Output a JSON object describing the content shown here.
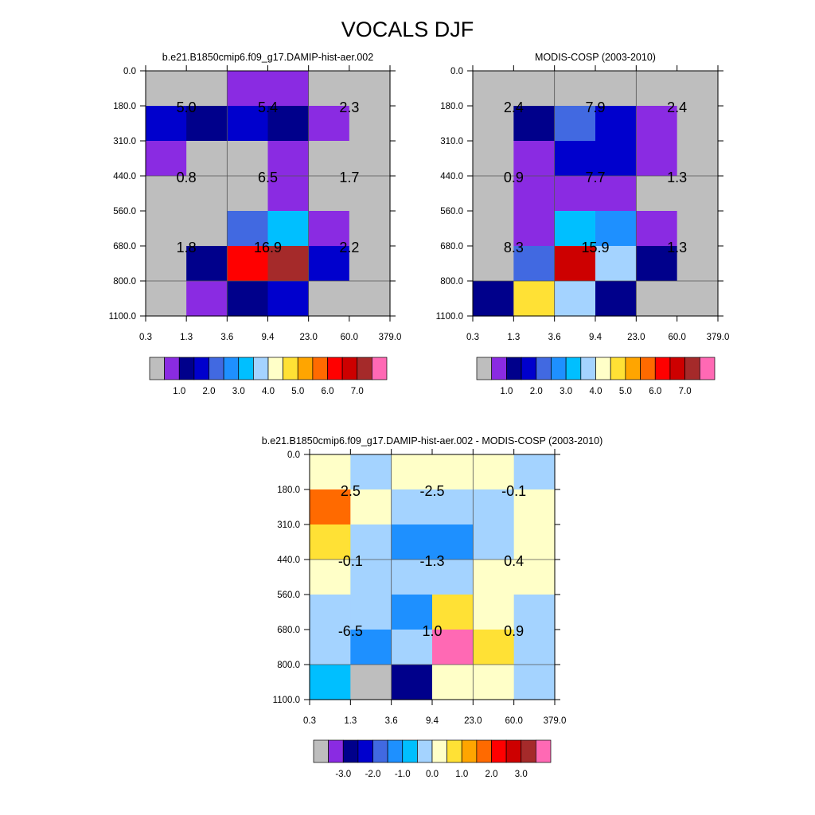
{
  "title": "VOCALS DJF",
  "palettes": {
    "main": [
      "#bebebe",
      "#8a2be2",
      "#00008b",
      "#0000cd",
      "#4169e1",
      "#1e90ff",
      "#00bfff",
      "#a4d3ff",
      "#ffffc8",
      "#ffe135",
      "#ffa500",
      "#ff6a00",
      "#ff0000",
      "#cd0000",
      "#a52a2a",
      "#ff69b4"
    ],
    "main_ticks": [
      "1.0",
      "2.0",
      "3.0",
      "4.0",
      "5.0",
      "6.0",
      "7.0"
    ],
    "diff_ticks": [
      "-3.0",
      "-2.0",
      "-1.0",
      "0.0",
      "1.0",
      "2.0",
      "3.0"
    ]
  },
  "chart_data": [
    {
      "type": "heatmap",
      "title": "b.e21.B1850cmip6.f09_g17.DAMIP-hist-aer.002",
      "x_ticks": [
        "0.3",
        "1.3",
        "3.6",
        "9.4",
        "23.0",
        "60.0",
        "379.0"
      ],
      "y_ticks": [
        "0.0",
        "180.0",
        "310.0",
        "440.0",
        "560.0",
        "680.0",
        "800.0",
        "1100.0"
      ],
      "colorbar_ticks": [
        "1.0",
        "2.0",
        "3.0",
        "4.0",
        "5.0",
        "6.0",
        "7.0"
      ],
      "cells": [
        [
          0,
          0,
          1,
          1,
          0,
          0
        ],
        [
          3,
          2,
          3,
          2,
          1,
          0
        ],
        [
          1,
          0,
          0,
          1,
          0,
          0
        ],
        [
          0,
          0,
          0,
          1,
          0,
          0
        ],
        [
          0,
          0,
          4,
          6,
          1,
          0
        ],
        [
          0,
          2,
          12,
          14,
          3,
          0
        ],
        [
          0,
          1,
          2,
          3,
          0,
          0
        ]
      ],
      "labels": [
        {
          "text": "5.0",
          "col": 1,
          "row": 1
        },
        {
          "text": "5.4",
          "col": 3,
          "row": 1
        },
        {
          "text": "2.3",
          "col": 5,
          "row": 1
        },
        {
          "text": "0.8",
          "col": 1,
          "row": 3
        },
        {
          "text": "6.5",
          "col": 3,
          "row": 3
        },
        {
          "text": "1.7",
          "col": 5,
          "row": 3
        },
        {
          "text": "1.8",
          "col": 1,
          "row": 5
        },
        {
          "text": "16.9",
          "col": 3,
          "row": 5
        },
        {
          "text": "2.2",
          "col": 5,
          "row": 5
        }
      ]
    },
    {
      "type": "heatmap",
      "title": "MODIS-COSP (2003-2010)",
      "x_ticks": [
        "0.3",
        "1.3",
        "3.6",
        "9.4",
        "23.0",
        "60.0",
        "379.0"
      ],
      "y_ticks": [
        "0.0",
        "180.0",
        "310.0",
        "440.0",
        "560.0",
        "680.0",
        "800.0",
        "1100.0"
      ],
      "colorbar_ticks": [
        "1.0",
        "2.0",
        "3.0",
        "4.0",
        "5.0",
        "6.0",
        "7.0"
      ],
      "cells": [
        [
          0,
          0,
          0,
          0,
          0,
          0
        ],
        [
          0,
          2,
          4,
          3,
          1,
          0
        ],
        [
          0,
          1,
          3,
          3,
          1,
          0
        ],
        [
          0,
          1,
          1,
          1,
          0,
          0
        ],
        [
          0,
          1,
          6,
          5,
          1,
          0
        ],
        [
          0,
          4,
          13,
          7,
          2,
          0
        ],
        [
          2,
          9,
          7,
          2,
          0,
          0
        ]
      ],
      "labels": [
        {
          "text": "2.4",
          "col": 1,
          "row": 1
        },
        {
          "text": "7.9",
          "col": 3,
          "row": 1
        },
        {
          "text": "2.4",
          "col": 5,
          "row": 1
        },
        {
          "text": "0.9",
          "col": 1,
          "row": 3
        },
        {
          "text": "7.7",
          "col": 3,
          "row": 3
        },
        {
          "text": "1.3",
          "col": 5,
          "row": 3
        },
        {
          "text": "8.3",
          "col": 1,
          "row": 5
        },
        {
          "text": "15.9",
          "col": 3,
          "row": 5
        },
        {
          "text": "1.3",
          "col": 5,
          "row": 5
        }
      ]
    },
    {
      "type": "heatmap",
      "title": "b.e21.B1850cmip6.f09_g17.DAMIP-hist-aer.002 - MODIS-COSP (2003-2010)",
      "x_ticks": [
        "0.3",
        "1.3",
        "3.6",
        "9.4",
        "23.0",
        "60.0",
        "379.0"
      ],
      "y_ticks": [
        "0.0",
        "180.0",
        "310.0",
        "440.0",
        "560.0",
        "680.0",
        "800.0",
        "1100.0"
      ],
      "colorbar_ticks": [
        "-3.0",
        "-2.0",
        "-1.0",
        "0.0",
        "1.0",
        "2.0",
        "3.0"
      ],
      "cells": [
        [
          8,
          7,
          8,
          8,
          8,
          7
        ],
        [
          11,
          8,
          7,
          7,
          7,
          8
        ],
        [
          9,
          7,
          5,
          5,
          7,
          8
        ],
        [
          8,
          7,
          7,
          7,
          8,
          8
        ],
        [
          7,
          7,
          5,
          9,
          8,
          7
        ],
        [
          7,
          5,
          7,
          15,
          9,
          7
        ],
        [
          6,
          0,
          2,
          8,
          8,
          7
        ]
      ],
      "labels": [
        {
          "text": "2.5",
          "col": 1,
          "row": 1
        },
        {
          "text": "-2.5",
          "col": 3,
          "row": 1
        },
        {
          "text": "-0.1",
          "col": 5,
          "row": 1
        },
        {
          "text": "-0.1",
          "col": 1,
          "row": 3
        },
        {
          "text": "-1.3",
          "col": 3,
          "row": 3
        },
        {
          "text": "0.4",
          "col": 5,
          "row": 3
        },
        {
          "text": "-6.5",
          "col": 1,
          "row": 5
        },
        {
          "text": "1.0",
          "col": 3,
          "row": 5
        },
        {
          "text": "0.9",
          "col": 5,
          "row": 5
        }
      ]
    }
  ]
}
